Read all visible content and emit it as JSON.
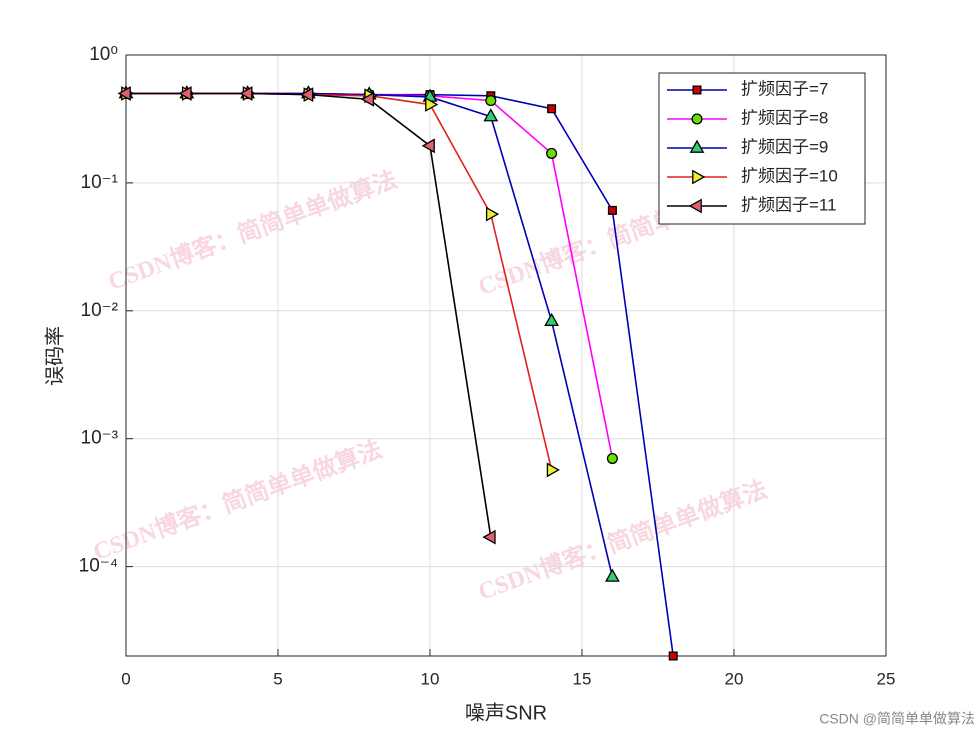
{
  "chart_data": {
    "type": "line",
    "x_label": "噪声SNR",
    "y_label": "误码率",
    "log_y": true,
    "grid": true,
    "legend_position": "top-right",
    "x": [
      0,
      2,
      4,
      6,
      8,
      10,
      12,
      14,
      16,
      18
    ],
    "xlim": [
      0,
      25
    ],
    "xticks": [
      0,
      5,
      10,
      15,
      20,
      25
    ],
    "ylim": [
      2e-05,
      1
    ],
    "yticks": [
      {
        "value": 1,
        "label": "10⁰"
      },
      {
        "value": 0.1,
        "label": "10⁻¹"
      },
      {
        "value": 0.01,
        "label": "10⁻²"
      },
      {
        "value": 0.001,
        "label": "10⁻³"
      },
      {
        "value": 0.0001,
        "label": "10⁻⁴"
      }
    ],
    "series": [
      {
        "name": "扩频因子=7",
        "color": "#0000b4",
        "marker": "square",
        "marker_color": "#cc0000",
        "values": [
          0.5,
          0.5,
          0.5,
          0.5,
          0.49,
          0.49,
          0.48,
          0.38,
          0.061,
          2e-05
        ]
      },
      {
        "name": "扩频因子=8",
        "color": "#ff00ff",
        "marker": "circle",
        "marker_color": "#66e000",
        "values": [
          0.5,
          0.5,
          0.5,
          0.5,
          0.49,
          0.48,
          0.44,
          0.17,
          0.0007,
          null
        ]
      },
      {
        "name": "扩频因子=9",
        "color": "#0000b4",
        "marker": "triangle-up",
        "marker_color": "#33cc77",
        "values": [
          0.5,
          0.5,
          0.5,
          0.5,
          0.49,
          0.47,
          0.33,
          0.0083,
          8.3e-05,
          null
        ]
      },
      {
        "name": "扩频因子=10",
        "color": "#e02020",
        "marker": "triangle-right",
        "marker_color": "#eeee33",
        "values": [
          0.5,
          0.5,
          0.5,
          0.49,
          0.48,
          0.41,
          0.057,
          0.00057,
          null,
          null
        ]
      },
      {
        "name": "扩频因子=11",
        "color": "#000000",
        "marker": "triangle-left",
        "marker_color": "#e06070",
        "values": [
          0.5,
          0.5,
          0.5,
          0.49,
          0.45,
          0.195,
          0.00017,
          null,
          null,
          null
        ]
      }
    ],
    "watermark": "CSDN博客：简简单单做算法",
    "credit": "CSDN @简简单单做算法"
  }
}
